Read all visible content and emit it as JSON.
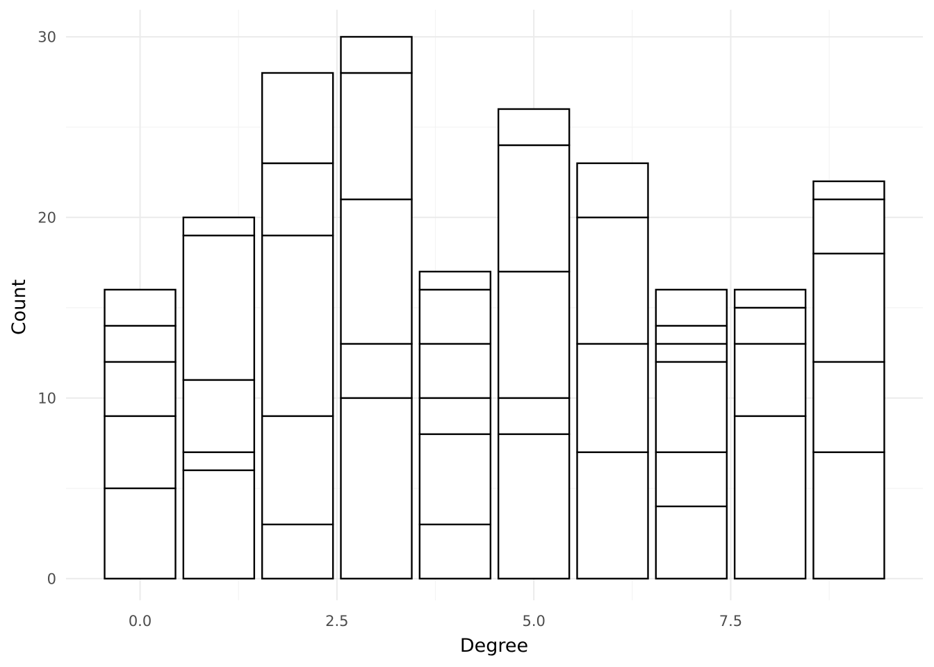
{
  "chart_data": {
    "type": "bar",
    "stacked": true,
    "xlabel": "Degree",
    "ylabel": "Count",
    "xlim": [
      -0.94,
      9.94
    ],
    "ylim": [
      -1.2,
      31.5
    ],
    "x_ticks": [
      {
        "value": 0,
        "label": "0.0"
      },
      {
        "value": 2.5,
        "label": "2.5"
      },
      {
        "value": 5,
        "label": "5.0"
      },
      {
        "value": 7.5,
        "label": "7.5"
      }
    ],
    "y_ticks": [
      {
        "value": 0,
        "label": "0"
      },
      {
        "value": 10,
        "label": "10"
      },
      {
        "value": 20,
        "label": "20"
      },
      {
        "value": 30,
        "label": "30"
      }
    ],
    "bar_width": 0.9,
    "bars": [
      {
        "x": 0,
        "total": 16,
        "boundaries": [
          0,
          5,
          9,
          12,
          14,
          16
        ]
      },
      {
        "x": 1,
        "total": 20,
        "boundaries": [
          0,
          6,
          7,
          11,
          19,
          20
        ]
      },
      {
        "x": 2,
        "total": 28,
        "boundaries": [
          0,
          3,
          9,
          19,
          23,
          28
        ]
      },
      {
        "x": 3,
        "total": 30,
        "boundaries": [
          0,
          10,
          13,
          21,
          28,
          30
        ]
      },
      {
        "x": 4,
        "total": 17,
        "boundaries": [
          0,
          3,
          8,
          10,
          13,
          16,
          17
        ]
      },
      {
        "x": 5,
        "total": 26,
        "boundaries": [
          0,
          8,
          10,
          17,
          24,
          26
        ]
      },
      {
        "x": 6,
        "total": 23,
        "boundaries": [
          0,
          7,
          13,
          20,
          23
        ]
      },
      {
        "x": 7,
        "total": 16,
        "boundaries": [
          0,
          4,
          7,
          12,
          13,
          14,
          16
        ]
      },
      {
        "x": 8,
        "total": 16,
        "boundaries": [
          0,
          9,
          13,
          15,
          16
        ]
      },
      {
        "x": 9,
        "total": 22,
        "boundaries": [
          0,
          7,
          12,
          18,
          21,
          22
        ]
      }
    ],
    "grid": true,
    "legend": "none",
    "colors": {
      "fill": "#ffffff",
      "outline": "#000000",
      "grid": "#ebebeb"
    }
  }
}
